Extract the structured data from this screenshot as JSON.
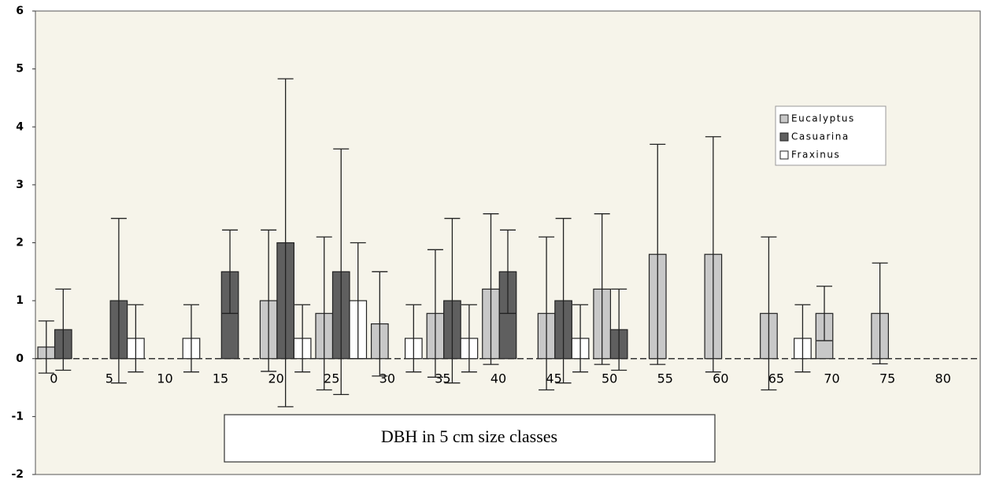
{
  "chart_data": {
    "type": "bar",
    "x_label": "DBH in 5 cm size classes",
    "categories": [
      "0",
      "5",
      "10",
      "15",
      "20",
      "25",
      "30",
      "35",
      "40",
      "45",
      "50",
      "55",
      "60",
      "65",
      "70",
      "75",
      "80"
    ],
    "series": [
      {
        "name": "Eucalyptus",
        "color": "#c8c8c8",
        "values": [
          0.2,
          0,
          0,
          0,
          1.0,
          0.78,
          0.6,
          0.78,
          1.2,
          0.78,
          1.2,
          1.8,
          1.8,
          0.78,
          0.78,
          0.78,
          0
        ],
        "errors": [
          0.45,
          0,
          0,
          0,
          1.22,
          1.32,
          0.9,
          1.1,
          1.3,
          1.32,
          1.3,
          1.9,
          2.03,
          1.32,
          0.47,
          0.87,
          0
        ]
      },
      {
        "name": "Casuarina",
        "color": "#5f5f5f",
        "values": [
          0.5,
          1.0,
          0,
          1.5,
          2.0,
          1.5,
          0,
          1.0,
          1.5,
          1.0,
          0.5,
          0,
          0,
          0,
          0,
          0,
          0
        ],
        "errors": [
          0.7,
          1.42,
          0,
          0.72,
          2.83,
          2.12,
          0,
          1.42,
          0.72,
          1.42,
          0.7,
          0,
          0,
          0,
          0,
          0,
          0
        ]
      },
      {
        "name": "Fraxinus",
        "color": "#ffffff",
        "values": [
          0,
          0.35,
          0.35,
          0,
          0.35,
          1.0,
          0.35,
          0.35,
          0,
          0.35,
          0,
          0,
          0,
          0.35,
          0,
          0,
          0
        ],
        "errors": [
          0,
          0.58,
          0.58,
          0,
          0.58,
          1.0,
          0.58,
          0.58,
          0,
          0.58,
          0,
          0,
          0,
          0.58,
          0,
          0,
          0
        ]
      }
    ],
    "ylim": [
      -2,
      6
    ],
    "yticks": [
      -2,
      -1,
      0,
      1,
      2,
      3,
      4,
      5,
      6
    ],
    "legend": "upper right"
  }
}
